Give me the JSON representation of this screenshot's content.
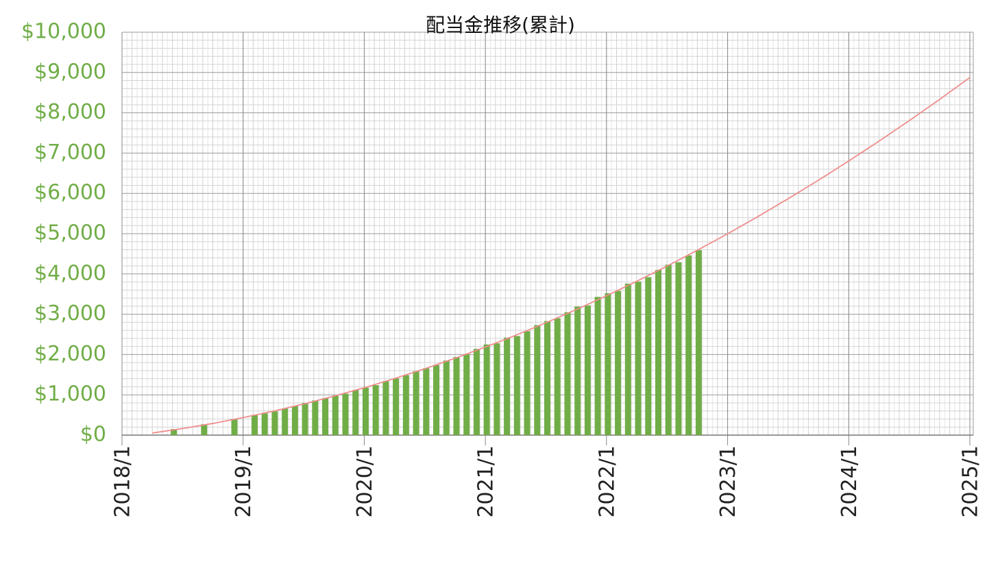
{
  "chart_data": {
    "type": "bar",
    "title": "配当金推移(累計)",
    "xlim": [
      "2018/1",
      "2025/1"
    ],
    "xticks": [
      "2018/1",
      "2019/1",
      "2020/1",
      "2021/1",
      "2022/1",
      "2023/1",
      "2024/1",
      "2025/1"
    ],
    "ylim": [
      0,
      10000
    ],
    "yticks": [
      {
        "value": 0,
        "label": "$0"
      },
      {
        "value": 1000,
        "label": "$1,000"
      },
      {
        "value": 2000,
        "label": "$2,000"
      },
      {
        "value": 3000,
        "label": "$3,000"
      },
      {
        "value": 4000,
        "label": "$4,000"
      },
      {
        "value": 5000,
        "label": "$5,000"
      },
      {
        "value": 6000,
        "label": "$6,000"
      },
      {
        "value": 7000,
        "label": "$7,000"
      },
      {
        "value": 8000,
        "label": "$8,000"
      },
      {
        "value": 9000,
        "label": "$9,000"
      },
      {
        "value": 10000,
        "label": "$10,000"
      }
    ],
    "grid": true,
    "series": [
      {
        "type": "bar",
        "color": "#70ad47",
        "x": [
          "2018/6",
          "2018/9",
          "2018/12",
          "2019/2",
          "2019/3",
          "2019/4",
          "2019/5",
          "2019/6",
          "2019/7",
          "2019/8",
          "2019/9",
          "2019/10",
          "2019/11",
          "2019/12",
          "2020/1",
          "2020/2",
          "2020/3",
          "2020/4",
          "2020/5",
          "2020/6",
          "2020/7",
          "2020/8",
          "2020/9",
          "2020/10",
          "2020/11",
          "2020/12",
          "2021/1",
          "2021/2",
          "2021/3",
          "2021/4",
          "2021/5",
          "2021/6",
          "2021/7",
          "2021/8",
          "2021/9",
          "2021/10",
          "2021/11",
          "2021/12",
          "2022/1",
          "2022/2",
          "2022/3",
          "2022/4",
          "2022/5",
          "2022/6",
          "2022/7",
          "2022/8",
          "2022/9",
          "2022/10"
        ],
        "values": [
          150,
          270,
          400,
          500,
          540,
          590,
          660,
          720,
          800,
          860,
          920,
          980,
          1030,
          1120,
          1180,
          1240,
          1340,
          1410,
          1490,
          1590,
          1660,
          1740,
          1850,
          1940,
          2010,
          2140,
          2250,
          2280,
          2420,
          2460,
          2580,
          2730,
          2830,
          2900,
          3050,
          3190,
          3220,
          3430,
          3520,
          3580,
          3760,
          3810,
          3920,
          4100,
          4230,
          4290,
          4460,
          4590
        ]
      },
      {
        "type": "line",
        "color": "#f08c8c",
        "x": [
          "2018/4",
          "2018/7",
          "2018/10",
          "2019/1",
          "2019/4",
          "2019/7",
          "2019/10",
          "2020/1",
          "2020/4",
          "2020/7",
          "2020/10",
          "2021/1",
          "2021/4",
          "2021/7",
          "2021/10",
          "2022/1",
          "2022/4",
          "2022/7",
          "2022/10",
          "2023/1",
          "2023/4",
          "2023/7",
          "2023/10",
          "2024/1",
          "2024/4",
          "2024/7",
          "2024/10",
          "2025/1"
        ],
        "values": [
          52,
          163,
          290,
          435,
          595,
          772,
          967,
          1176,
          1404,
          1647,
          1908,
          2185,
          2478,
          2788,
          3115,
          3458,
          3819,
          4195,
          4588,
          4998,
          5424,
          5868,
          6327,
          6804,
          7296,
          7806,
          8332,
          8875
        ]
      }
    ]
  }
}
